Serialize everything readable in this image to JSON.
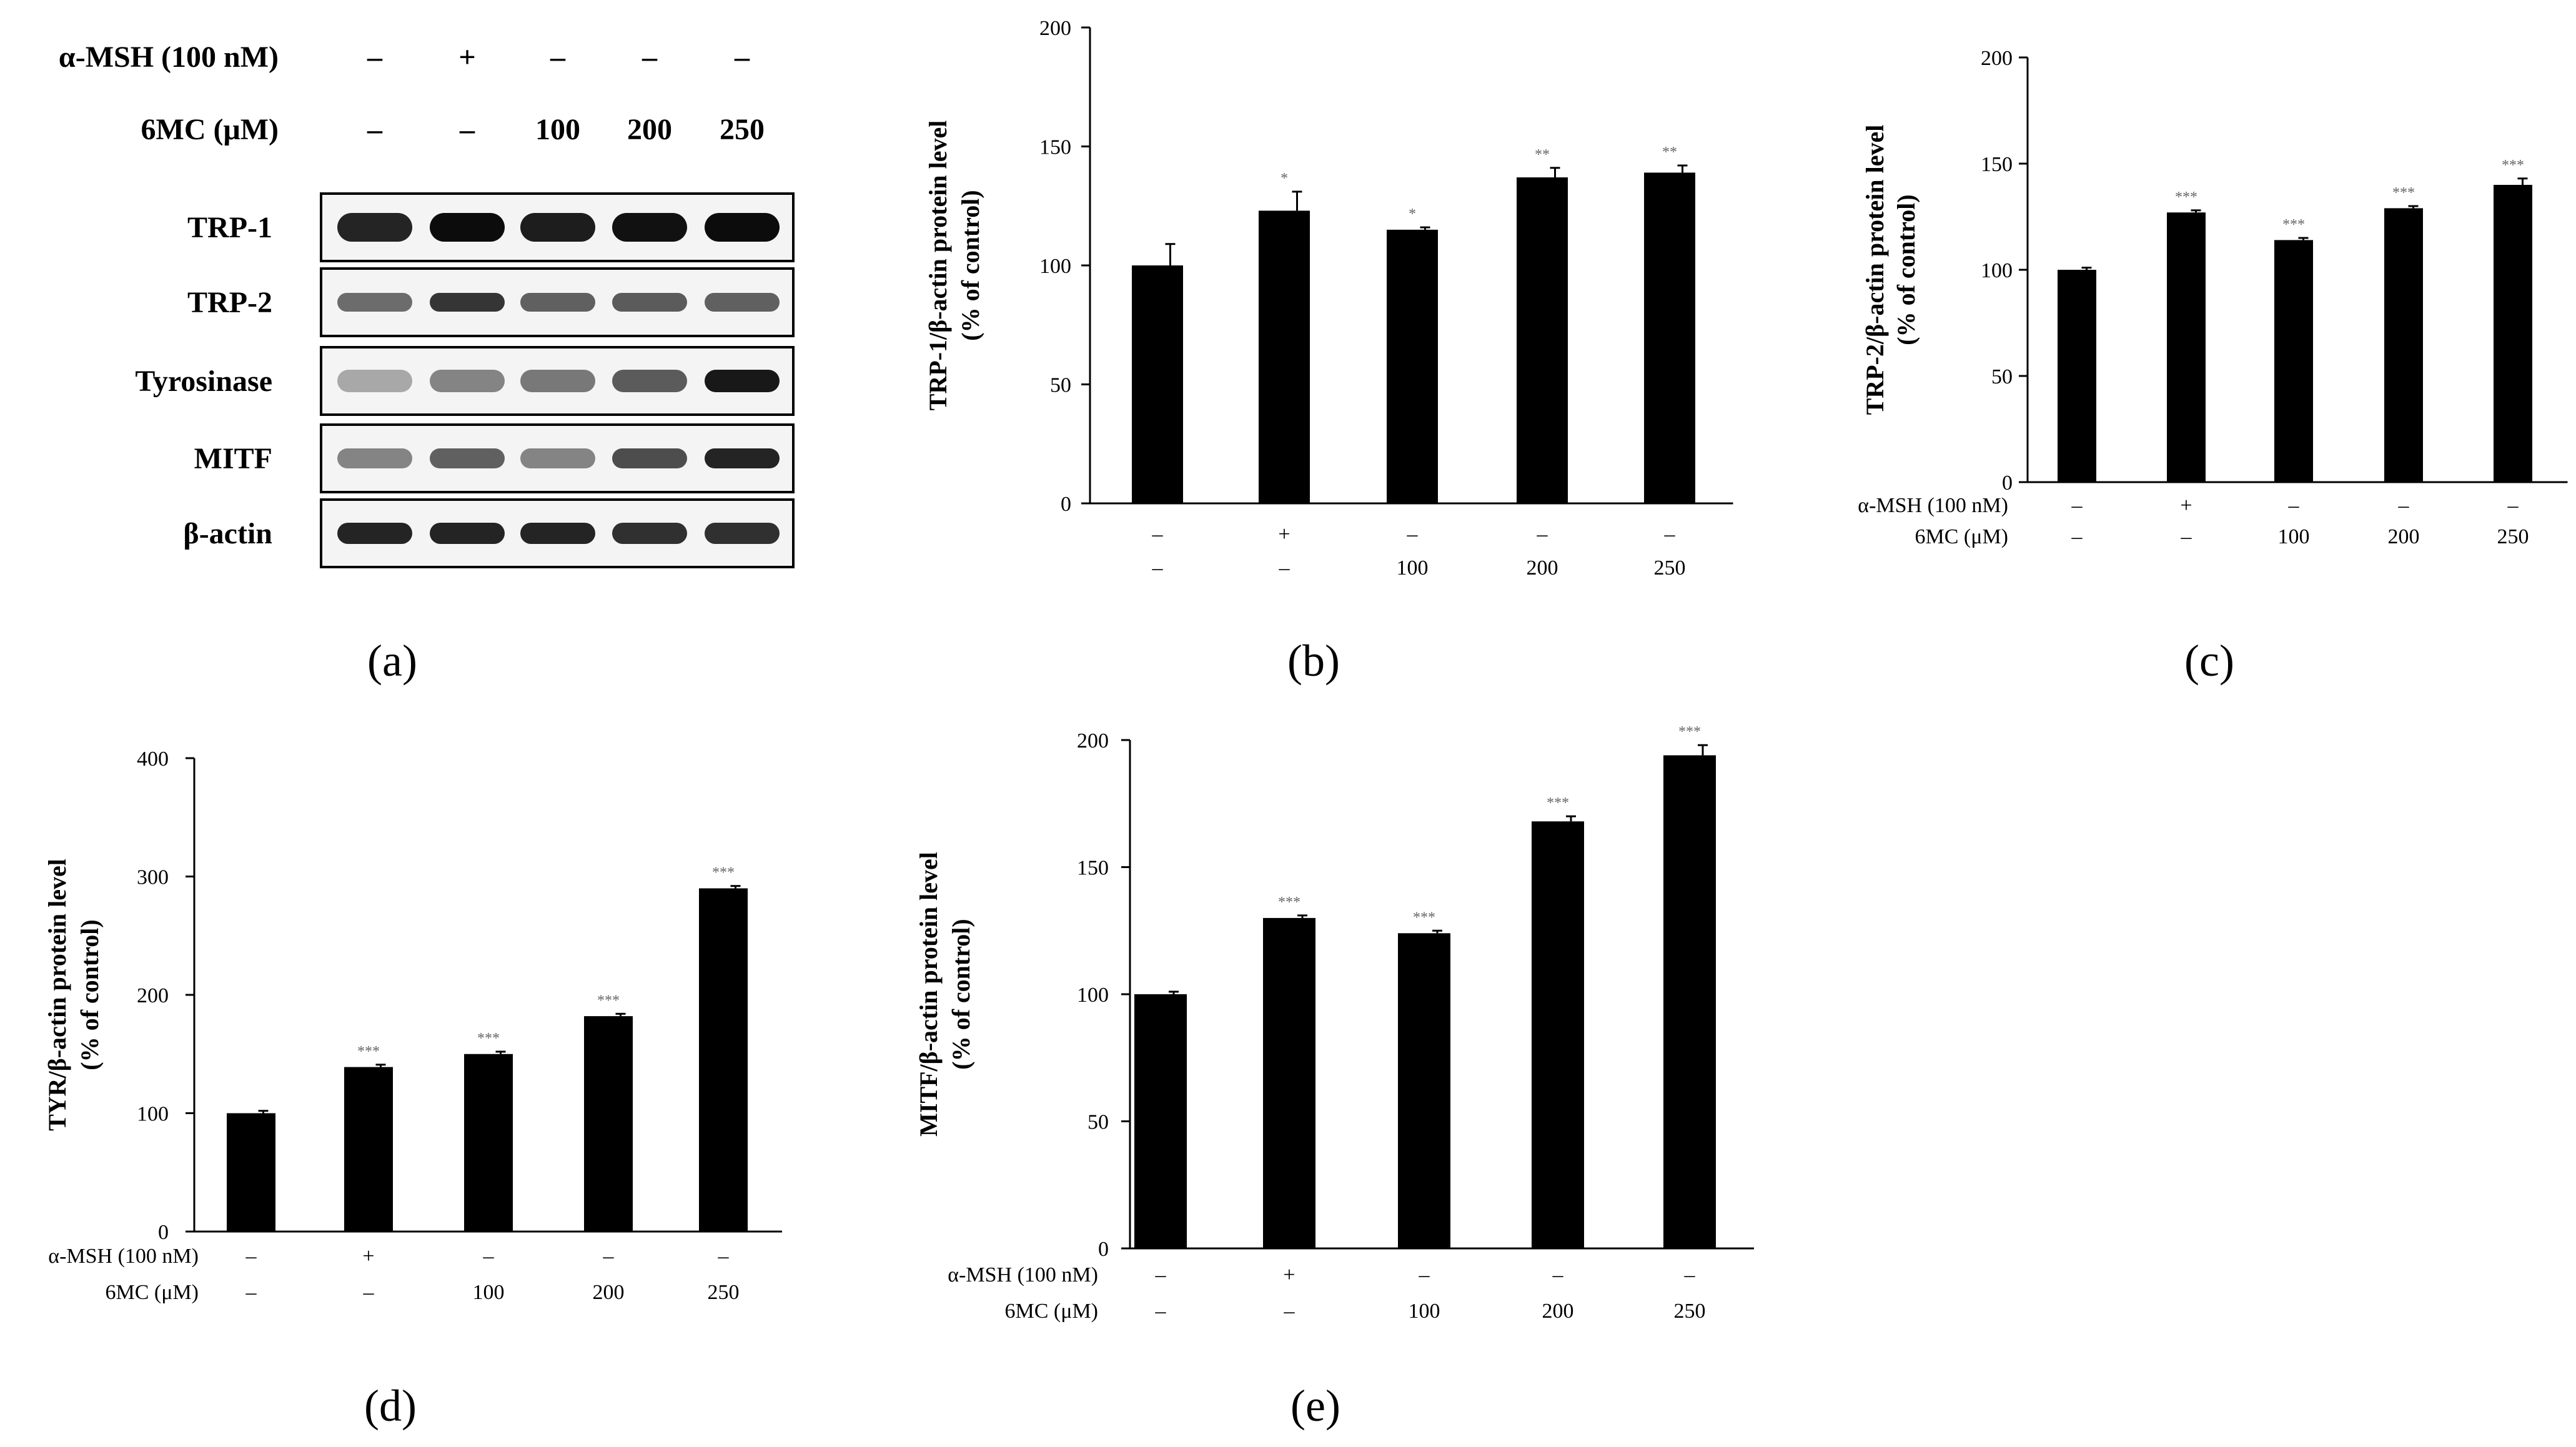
{
  "figure": {
    "panel_labels": [
      "(a)",
      "(b)",
      "(c)",
      "(d)",
      "(e)"
    ]
  },
  "blot": {
    "condition_rows": [
      {
        "label": "α-MSH (100 nM)",
        "values": [
          "–",
          "+",
          "–",
          "–",
          "–"
        ]
      },
      {
        "label": "6MC (μM)",
        "values": [
          "–",
          "–",
          "100",
          "200",
          "250"
        ]
      }
    ],
    "proteins": [
      "TRP-1",
      "TRP-2",
      "Tyrosinase",
      "MITF",
      "β-actin"
    ]
  },
  "chart_data": [
    {
      "type": "bar",
      "panel": "(b)",
      "ylabel_line1": "TRP-1/β-actin protein level",
      "ylabel_line2": "(% of control)",
      "ylim": [
        0,
        200
      ],
      "yticks": [
        "0",
        "50",
        "100",
        "150",
        "200"
      ],
      "values": [
        100,
        123,
        115,
        137,
        139
      ],
      "errors": [
        9,
        8,
        1,
        4,
        3
      ],
      "significance": [
        "",
        "*",
        "*",
        "**",
        "**"
      ],
      "condition_rows": [
        {
          "label": "",
          "values": [
            "–",
            "+",
            "–",
            "–",
            "–"
          ]
        },
        {
          "label": "",
          "values": [
            "–",
            "–",
            "100",
            "200",
            "250"
          ]
        }
      ]
    },
    {
      "type": "bar",
      "panel": "(c)",
      "ylabel_line1": "TRP-2/β-actin protein level",
      "ylabel_line2": "(% of control)",
      "ylim": [
        0,
        200
      ],
      "yticks": [
        "0",
        "50",
        "100",
        "150",
        "200"
      ],
      "values": [
        100,
        127,
        114,
        129,
        140
      ],
      "errors": [
        1,
        1,
        1,
        1,
        3
      ],
      "significance": [
        "",
        "***",
        "***",
        "***",
        "***"
      ],
      "condition_rows": [
        {
          "label": "α-MSH (100 nM)",
          "values": [
            "–",
            "+",
            "–",
            "–",
            "–"
          ]
        },
        {
          "label": "6MC (μM)",
          "values": [
            "–",
            "–",
            "100",
            "200",
            "250"
          ]
        }
      ]
    },
    {
      "type": "bar",
      "panel": "(d)",
      "ylabel_line1": "TYR/β-actin protein level",
      "ylabel_line2": "(% of control)",
      "ylim": [
        0,
        400
      ],
      "yticks": [
        "0",
        "100",
        "200",
        "300",
        "400"
      ],
      "values": [
        100,
        139,
        150,
        182,
        290
      ],
      "errors": [
        2,
        2,
        2,
        2,
        2
      ],
      "significance": [
        "",
        "***",
        "***",
        "***",
        "***"
      ],
      "condition_rows": [
        {
          "label": "α-MSH (100 nM)",
          "values": [
            "–",
            "+",
            "–",
            "–",
            "–"
          ]
        },
        {
          "label": "6MC (μM)",
          "values": [
            "–",
            "–",
            "100",
            "200",
            "250"
          ]
        }
      ]
    },
    {
      "type": "bar",
      "panel": "(e)",
      "ylabel_line1": "MITF/β-actin protein level",
      "ylabel_line2": "(% of control)",
      "ylim": [
        0,
        200
      ],
      "yticks": [
        "0",
        "50",
        "100",
        "150",
        "200"
      ],
      "values": [
        100,
        130,
        124,
        168,
        194
      ],
      "errors": [
        1,
        1,
        1,
        2,
        4
      ],
      "significance": [
        "",
        "***",
        "***",
        "***",
        "***"
      ],
      "condition_rows": [
        {
          "label": "α-MSH (100 nM)",
          "values": [
            "–",
            "+",
            "–",
            "–",
            "–"
          ]
        },
        {
          "label": "6MC (μM)",
          "values": [
            "–",
            "–",
            "100",
            "200",
            "250"
          ]
        }
      ]
    }
  ]
}
